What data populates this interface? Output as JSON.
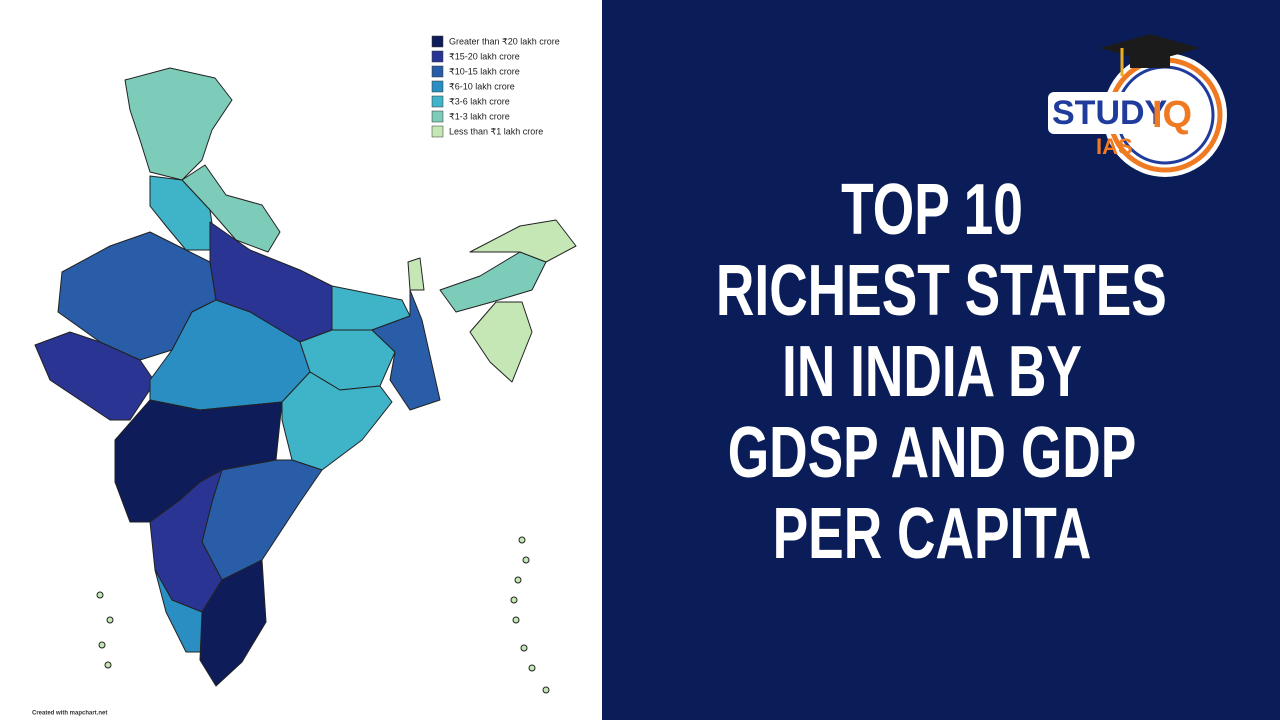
{
  "legend": {
    "items": [
      {
        "label": "Greater than ₹20 lakh crore",
        "color": "#0e1d5a"
      },
      {
        "label": "₹15-20 lakh crore",
        "color": "#2a3493"
      },
      {
        "label": "₹10-15 lakh crore",
        "color": "#2a5da8"
      },
      {
        "label": "₹6-10 lakh crore",
        "color": "#2a8ec3"
      },
      {
        "label": "₹3-6 lakh crore",
        "color": "#3fb3c8"
      },
      {
        "label": "₹1-3 lakh crore",
        "color": "#7dcbb9"
      },
      {
        "label": "Less than ₹1 lakh crore",
        "color": "#c5e7b5"
      }
    ]
  },
  "credit": "Created with mapchart.net",
  "title": {
    "lines": [
      "TOP 10",
      "RICHEST STATES",
      "IN INDIA BY",
      "GDSP AND GDP",
      "PER CAPITA"
    ]
  },
  "logo": {
    "study": "STUDY",
    "iq": "IQ",
    "ias": "IAS"
  }
}
